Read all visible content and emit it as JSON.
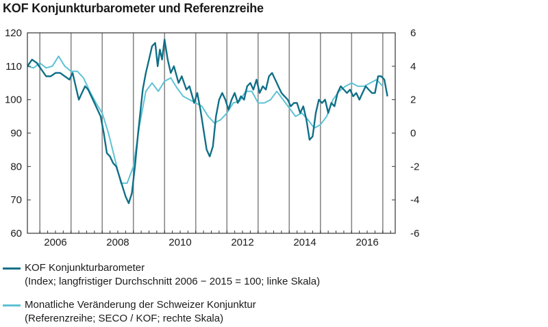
{
  "title": "KOF Konjunkturbarometer und Referenzreihe",
  "colors": {
    "barometer": "#0f6f86",
    "referenz": "#5cc2d4",
    "axis": "#333333",
    "grid": "#888888"
  },
  "chart_data": {
    "type": "line",
    "x_start": 2005.6,
    "x_end": 2017.4,
    "x_ticks": [
      "2006",
      "2008",
      "2010",
      "2012",
      "2014",
      "2016"
    ],
    "y_left": {
      "range": [
        60,
        120
      ],
      "ticks": [
        "60",
        "70",
        "80",
        "90",
        "100",
        "110",
        "120"
      ],
      "label": ""
    },
    "y_right": {
      "range": [
        -6,
        6
      ],
      "ticks": [
        "-6",
        "-4",
        "-2",
        "0",
        "2",
        "4",
        "6"
      ],
      "label": ""
    },
    "series": [
      {
        "name": "KOF Konjunkturbarometer",
        "axis": "left",
        "x": [
          2005.6,
          2005.75,
          2005.9,
          2006.05,
          2006.2,
          2006.35,
          2006.5,
          2006.65,
          2006.8,
          2006.95,
          2007.05,
          2007.15,
          2007.25,
          2007.35,
          2007.45,
          2007.55,
          2007.65,
          2007.8,
          2007.95,
          2008.05,
          2008.15,
          2008.25,
          2008.35,
          2008.45,
          2008.55,
          2008.65,
          2008.75,
          2008.85,
          2008.95,
          2009.05,
          2009.15,
          2009.3,
          2009.4,
          2009.5,
          2009.6,
          2009.7,
          2009.78,
          2009.85,
          2009.92,
          2010.0,
          2010.1,
          2010.2,
          2010.3,
          2010.45,
          2010.55,
          2010.7,
          2010.8,
          2010.95,
          2011.05,
          2011.15,
          2011.25,
          2011.35,
          2011.45,
          2011.55,
          2011.65,
          2011.75,
          2011.85,
          2011.95,
          2012.05,
          2012.15,
          2012.25,
          2012.35,
          2012.45,
          2012.55,
          2012.65,
          2012.75,
          2012.85,
          2012.95,
          2013.05,
          2013.15,
          2013.25,
          2013.35,
          2013.45,
          2013.55,
          2013.65,
          2013.75,
          2013.85,
          2013.95,
          2014.05,
          2014.15,
          2014.25,
          2014.35,
          2014.45,
          2014.55,
          2014.65,
          2014.75,
          2014.85,
          2014.95,
          2015.05,
          2015.15,
          2015.25,
          2015.35,
          2015.45,
          2015.55,
          2015.65,
          2015.75,
          2015.85,
          2015.95,
          2016.05,
          2016.15,
          2016.25,
          2016.35,
          2016.45,
          2016.55,
          2016.65,
          2016.75,
          2016.85,
          2016.95,
          2017.05,
          2017.15
        ],
        "values": [
          110,
          112,
          111,
          109,
          107,
          107,
          108,
          108,
          107,
          106,
          108,
          104,
          100,
          102,
          104,
          103,
          101,
          98,
          95,
          90,
          84,
          83,
          81,
          80,
          77,
          74,
          71,
          69,
          72,
          80,
          90,
          103,
          108,
          112,
          116,
          117,
          110,
          115,
          112,
          118,
          112,
          108,
          110,
          105,
          107,
          103,
          104,
          99,
          102,
          97,
          91,
          85,
          83,
          86,
          95,
          100,
          102,
          100,
          97,
          100,
          102,
          99,
          101,
          100,
          104,
          105,
          103,
          106,
          102,
          104,
          103,
          107,
          108,
          106,
          104,
          102,
          101,
          100,
          98,
          99,
          99,
          96,
          98,
          94,
          88,
          89,
          96,
          100,
          99,
          100,
          96,
          99,
          98,
          102,
          104,
          103,
          102,
          103,
          101,
          102,
          100,
          102,
          104,
          103,
          102,
          102,
          107,
          107,
          106,
          101
        ]
      },
      {
        "name": "Monatliche Veränderung der Schweizer Konjunktur",
        "axis": "right",
        "x": [
          2005.6,
          2005.8,
          2006.0,
          2006.2,
          2006.4,
          2006.6,
          2006.8,
          2007.0,
          2007.2,
          2007.4,
          2007.6,
          2007.8,
          2008.0,
          2008.2,
          2008.4,
          2008.6,
          2008.8,
          2009.0,
          2009.2,
          2009.4,
          2009.6,
          2009.8,
          2010.0,
          2010.2,
          2010.4,
          2010.6,
          2010.8,
          2011.0,
          2011.2,
          2011.4,
          2011.6,
          2011.8,
          2012.0,
          2012.2,
          2012.4,
          2012.6,
          2012.8,
          2013.0,
          2013.2,
          2013.4,
          2013.6,
          2013.8,
          2014.0,
          2014.2,
          2014.4,
          2014.6,
          2014.8,
          2015.0,
          2015.2,
          2015.4,
          2015.6,
          2015.8,
          2016.0,
          2016.2,
          2016.4,
          2016.6,
          2016.8,
          2017.0
        ],
        "values": [
          4.0,
          3.9,
          4.2,
          3.9,
          4.0,
          4.6,
          4.0,
          3.7,
          3.7,
          3.3,
          2.5,
          1.8,
          1.2,
          0.0,
          -1.5,
          -3.0,
          -3.0,
          -2.0,
          0.5,
          2.5,
          3.0,
          2.5,
          3.1,
          3.3,
          2.7,
          2.2,
          2.0,
          1.8,
          1.6,
          1.0,
          0.6,
          0.8,
          1.2,
          1.8,
          1.9,
          2.5,
          2.5,
          1.8,
          1.8,
          2.0,
          2.5,
          2.0,
          1.5,
          1.0,
          1.2,
          0.8,
          0.3,
          0.5,
          1.0,
          2.0,
          2.5,
          2.8,
          3.0,
          2.8,
          2.8,
          3.0,
          3.2,
          2.8
        ]
      }
    ]
  },
  "legend": {
    "items": [
      {
        "series": "barometer",
        "line1": "KOF Konjunkturbarometer",
        "line2": "(Index; langfristiger Durchschnitt 2006 − 2015 = 100; linke Skala)"
      },
      {
        "series": "referenz",
        "line1": "Monatliche Veränderung der Schweizer Konjunktur",
        "line2": "(Referenzreihe; SECO / KOF; rechte Skala)"
      }
    ]
  }
}
